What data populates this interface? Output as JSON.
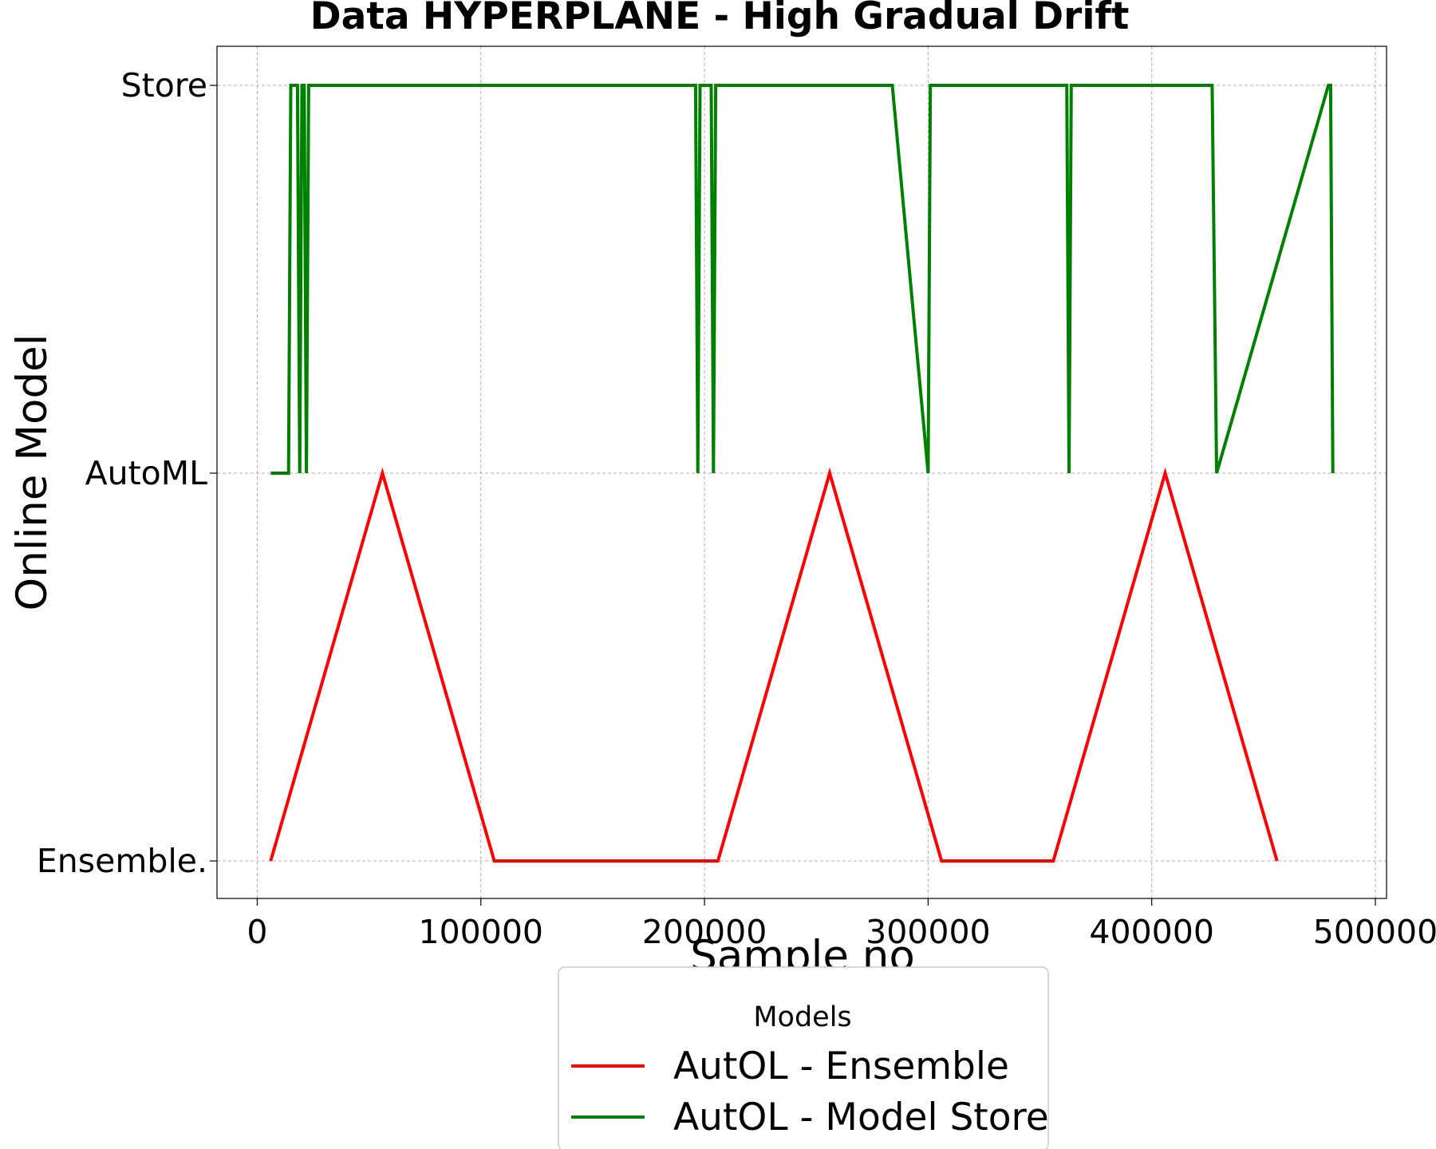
{
  "chart_data": {
    "type": "line",
    "title": "Data HYPERPLANE - High Gradual Drift",
    "xlabel": "Sample no",
    "ylabel": "Online Model",
    "xlim": [
      -18000,
      505000
    ],
    "x_ticks": [
      0,
      100000,
      200000,
      300000,
      400000,
      500000
    ],
    "y_categories": [
      "Ensemble.",
      "AutoML",
      "Store"
    ],
    "grid": true,
    "legend": {
      "title": "Models",
      "placement": "bottom-center"
    },
    "series": [
      {
        "name": "AutOL - Ensemble",
        "color": "#ff0000",
        "points": [
          [
            6000,
            0
          ],
          [
            56000,
            1
          ],
          [
            106000,
            0
          ],
          [
            206000,
            0
          ],
          [
            256000,
            1
          ],
          [
            306000,
            0
          ],
          [
            356000,
            0
          ],
          [
            406000,
            1
          ],
          [
            456000,
            0
          ]
        ]
      },
      {
        "name": "AutOL - Model Store",
        "color": "#008000",
        "points": [
          [
            6000,
            1
          ],
          [
            14000,
            1
          ],
          [
            15000,
            2
          ],
          [
            18000,
            2
          ],
          [
            19000,
            1
          ],
          [
            20000,
            2
          ],
          [
            21000,
            2
          ],
          [
            22000,
            1
          ],
          [
            23000,
            2
          ],
          [
            196000,
            2
          ],
          [
            197000,
            1
          ],
          [
            198000,
            2
          ],
          [
            203000,
            2
          ],
          [
            204000,
            1
          ],
          [
            205000,
            2
          ],
          [
            284000,
            2
          ],
          [
            300000,
            1
          ],
          [
            301000,
            2
          ],
          [
            362000,
            2
          ],
          [
            363000,
            1
          ],
          [
            364000,
            2
          ],
          [
            427000,
            2
          ],
          [
            429000,
            1
          ],
          [
            479000,
            2
          ],
          [
            480000,
            2
          ],
          [
            481000,
            1
          ]
        ]
      }
    ]
  }
}
